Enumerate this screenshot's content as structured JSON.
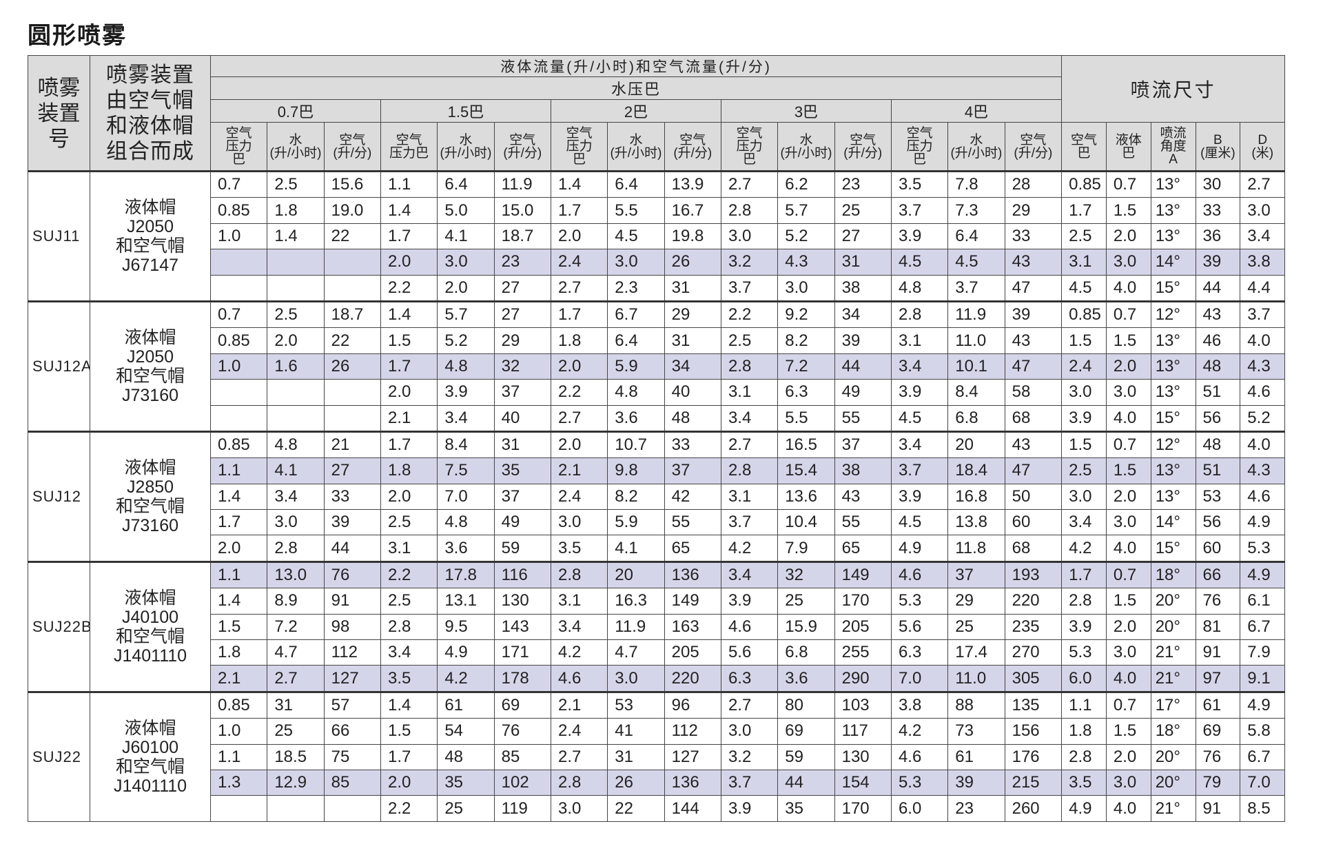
{
  "title": "圆形喷雾",
  "colors": {
    "header_bg": "#dcdcdc",
    "highlight_row": "#d5d5ea",
    "border": "#444444"
  },
  "header": {
    "model": "喷雾\n装置\n号",
    "combo": "喷雾装置\n由空气帽\n和液体帽\n组合而成",
    "flow_title": "液体流量(升/小时)和空气流量(升/分)",
    "water_pressure": "水压巴",
    "dims_title": "喷流尺寸",
    "pressure_groups": [
      "0.7巴",
      "1.5巴",
      "2巴",
      "3巴",
      "4巴"
    ],
    "sub_columns": [
      [
        "空气\n压力\n巴",
        "水\n(升/小时)",
        "空气\n(升/分)"
      ],
      [
        "空气\n压力巴",
        "水\n(升/小时)",
        "空气\n(升/分)"
      ],
      [
        "空气\n压力\n巴",
        "水\n(升/小时)",
        "空气\n(升/分)"
      ],
      [
        "空气\n压力\n巴",
        "水\n(升/小时)",
        "空气\n(升/分)"
      ],
      [
        "空气\n压力\n巴",
        "水\n(升/小时)",
        "空气\n(升/分)"
      ]
    ],
    "dims_columns": [
      "空气\n巴",
      "液体\n巴",
      "喷流\n角度\nA",
      "B\n(厘米)",
      "D\n(米)"
    ]
  },
  "groups": [
    {
      "model": "SUJ11",
      "combo": "液体帽\nJ2050\n和空气帽\nJ67147",
      "rows": [
        {
          "highlighted": false,
          "cells": [
            "0.7",
            "2.5",
            "15.6",
            "1.1",
            "6.4",
            "11.9",
            "1.4",
            "6.4",
            "13.9",
            "2.7",
            "6.2",
            "23",
            "3.5",
            "7.8",
            "28",
            "0.85",
            "0.7",
            "13°",
            "30",
            "2.7"
          ]
        },
        {
          "highlighted": false,
          "cells": [
            "0.85",
            "1.8",
            "19.0",
            "1.4",
            "5.0",
            "15.0",
            "1.7",
            "5.5",
            "16.7",
            "2.8",
            "5.7",
            "25",
            "3.7",
            "7.3",
            "29",
            "1.7",
            "1.5",
            "13°",
            "33",
            "3.0"
          ]
        },
        {
          "highlighted": false,
          "cells": [
            "1.0",
            "1.4",
            "22",
            "1.7",
            "4.1",
            "18.7",
            "2.0",
            "4.5",
            "19.8",
            "3.0",
            "5.2",
            "27",
            "3.9",
            "6.4",
            "33",
            "2.5",
            "2.0",
            "13°",
            "36",
            "3.4"
          ]
        },
        {
          "highlighted": true,
          "cells": [
            "",
            "",
            "",
            "2.0",
            "3.0",
            "23",
            "2.4",
            "3.0",
            "26",
            "3.2",
            "4.3",
            "31",
            "4.5",
            "4.5",
            "43",
            "3.1",
            "3.0",
            "14°",
            "39",
            "3.8"
          ]
        },
        {
          "highlighted": false,
          "cells": [
            "",
            "",
            "",
            "2.2",
            "2.0",
            "27",
            "2.7",
            "2.3",
            "31",
            "3.7",
            "3.0",
            "38",
            "4.8",
            "3.7",
            "47",
            "4.5",
            "4.0",
            "15°",
            "44",
            "4.4"
          ]
        }
      ]
    },
    {
      "model": "SUJ12A",
      "combo": "液体帽\nJ2050\n和空气帽\nJ73160",
      "rows": [
        {
          "highlighted": false,
          "cells": [
            "0.7",
            "2.5",
            "18.7",
            "1.4",
            "5.7",
            "27",
            "1.7",
            "6.7",
            "29",
            "2.2",
            "9.2",
            "34",
            "2.8",
            "11.9",
            "39",
            "0.85",
            "0.7",
            "12°",
            "43",
            "3.7"
          ]
        },
        {
          "highlighted": false,
          "cells": [
            "0.85",
            "2.0",
            "22",
            "1.5",
            "5.2",
            "29",
            "1.8",
            "6.4",
            "31",
            "2.5",
            "8.2",
            "39",
            "3.1",
            "11.0",
            "43",
            "1.5",
            "1.5",
            "13°",
            "46",
            "4.0"
          ]
        },
        {
          "highlighted": true,
          "cells": [
            "1.0",
            "1.6",
            "26",
            "1.7",
            "4.8",
            "32",
            "2.0",
            "5.9",
            "34",
            "2.8",
            "7.2",
            "44",
            "3.4",
            "10.1",
            "47",
            "2.4",
            "2.0",
            "13°",
            "48",
            "4.3"
          ]
        },
        {
          "highlighted": false,
          "cells": [
            "",
            "",
            "",
            "2.0",
            "3.9",
            "37",
            "2.2",
            "4.8",
            "40",
            "3.1",
            "6.3",
            "49",
            "3.9",
            "8.4",
            "58",
            "3.0",
            "3.0",
            "13°",
            "51",
            "4.6"
          ]
        },
        {
          "highlighted": false,
          "cells": [
            "",
            "",
            "",
            "2.1",
            "3.4",
            "40",
            "2.7",
            "3.6",
            "48",
            "3.4",
            "5.5",
            "55",
            "4.5",
            "6.8",
            "68",
            "3.9",
            "4.0",
            "15°",
            "56",
            "5.2"
          ]
        }
      ]
    },
    {
      "model": "SUJ12",
      "combo": "液体帽\nJ2850\n和空气帽\nJ73160",
      "rows": [
        {
          "highlighted": false,
          "cells": [
            "0.85",
            "4.8",
            "21",
            "1.7",
            "8.4",
            "31",
            "2.0",
            "10.7",
            "33",
            "2.7",
            "16.5",
            "37",
            "3.4",
            "20",
            "43",
            "1.5",
            "0.7",
            "12°",
            "48",
            "4.0"
          ]
        },
        {
          "highlighted": true,
          "cells": [
            "1.1",
            "4.1",
            "27",
            "1.8",
            "7.5",
            "35",
            "2.1",
            "9.8",
            "37",
            "2.8",
            "15.4",
            "38",
            "3.7",
            "18.4",
            "47",
            "2.5",
            "1.5",
            "13°",
            "51",
            "4.3"
          ]
        },
        {
          "highlighted": false,
          "cells": [
            "1.4",
            "3.4",
            "33",
            "2.0",
            "7.0",
            "37",
            "2.4",
            "8.2",
            "42",
            "3.1",
            "13.6",
            "43",
            "3.9",
            "16.8",
            "50",
            "3.0",
            "2.0",
            "13°",
            "53",
            "4.6"
          ]
        },
        {
          "highlighted": false,
          "cells": [
            "1.7",
            "3.0",
            "39",
            "2.5",
            "4.8",
            "49",
            "3.0",
            "5.9",
            "55",
            "3.7",
            "10.4",
            "55",
            "4.5",
            "13.8",
            "60",
            "3.4",
            "3.0",
            "14°",
            "56",
            "4.9"
          ]
        },
        {
          "highlighted": false,
          "cells": [
            "2.0",
            "2.8",
            "44",
            "3.1",
            "3.6",
            "59",
            "3.5",
            "4.1",
            "65",
            "4.2",
            "7.9",
            "65",
            "4.9",
            "11.8",
            "68",
            "4.2",
            "4.0",
            "15°",
            "60",
            "5.3"
          ]
        }
      ]
    },
    {
      "model": "SUJ22B",
      "combo": "液体帽\nJ40100\n和空气帽\nJ1401110",
      "rows": [
        {
          "highlighted": true,
          "cells": [
            "1.1",
            "13.0",
            "76",
            "2.2",
            "17.8",
            "116",
            "2.8",
            "20",
            "136",
            "3.4",
            "32",
            "149",
            "4.6",
            "37",
            "193",
            "1.7",
            "0.7",
            "18°",
            "66",
            "4.9"
          ]
        },
        {
          "highlighted": false,
          "cells": [
            "1.4",
            "8.9",
            "91",
            "2.5",
            "13.1",
            "130",
            "3.1",
            "16.3",
            "149",
            "3.9",
            "25",
            "170",
            "5.3",
            "29",
            "220",
            "2.8",
            "1.5",
            "20°",
            "76",
            "6.1"
          ]
        },
        {
          "highlighted": false,
          "cells": [
            "1.5",
            "7.2",
            "98",
            "2.8",
            "9.5",
            "143",
            "3.4",
            "11.9",
            "163",
            "4.6",
            "15.9",
            "205",
            "5.6",
            "25",
            "235",
            "3.9",
            "2.0",
            "20°",
            "81",
            "6.7"
          ]
        },
        {
          "highlighted": false,
          "cells": [
            "1.8",
            "4.7",
            "112",
            "3.4",
            "4.9",
            "171",
            "4.2",
            "4.7",
            "205",
            "5.6",
            "6.8",
            "255",
            "6.3",
            "17.4",
            "270",
            "5.3",
            "3.0",
            "21°",
            "91",
            "7.9"
          ]
        },
        {
          "highlighted": true,
          "cells": [
            "2.1",
            "2.7",
            "127",
            "3.5",
            "4.2",
            "178",
            "4.6",
            "3.0",
            "220",
            "6.3",
            "3.6",
            "290",
            "7.0",
            "11.0",
            "305",
            "6.0",
            "4.0",
            "21°",
            "97",
            "9.1"
          ]
        }
      ]
    },
    {
      "model": "SUJ22",
      "combo": "液体帽\nJ60100\n和空气帽\nJ1401110",
      "rows": [
        {
          "highlighted": false,
          "cells": [
            "0.85",
            "31",
            "57",
            "1.4",
            "61",
            "69",
            "2.1",
            "53",
            "96",
            "2.7",
            "80",
            "103",
            "3.8",
            "88",
            "135",
            "1.1",
            "0.7",
            "17°",
            "61",
            "4.9"
          ]
        },
        {
          "highlighted": false,
          "cells": [
            "1.0",
            "25",
            "66",
            "1.5",
            "54",
            "76",
            "2.4",
            "41",
            "112",
            "3.0",
            "69",
            "117",
            "4.2",
            "73",
            "156",
            "1.8",
            "1.5",
            "18°",
            "69",
            "5.8"
          ]
        },
        {
          "highlighted": false,
          "cells": [
            "1.1",
            "18.5",
            "75",
            "1.7",
            "48",
            "85",
            "2.7",
            "31",
            "127",
            "3.2",
            "59",
            "130",
            "4.6",
            "61",
            "176",
            "2.8",
            "2.0",
            "20°",
            "76",
            "6.7"
          ]
        },
        {
          "highlighted": true,
          "cells": [
            "1.3",
            "12.9",
            "85",
            "2.0",
            "35",
            "102",
            "2.8",
            "26",
            "136",
            "3.7",
            "44",
            "154",
            "5.3",
            "39",
            "215",
            "3.5",
            "3.0",
            "20°",
            "79",
            "7.0"
          ]
        },
        {
          "highlighted": false,
          "cells": [
            "",
            "",
            "",
            "2.2",
            "25",
            "119",
            "3.0",
            "22",
            "144",
            "3.9",
            "35",
            "170",
            "6.0",
            "23",
            "260",
            "4.9",
            "4.0",
            "21°",
            "91",
            "8.5"
          ]
        }
      ]
    }
  ]
}
